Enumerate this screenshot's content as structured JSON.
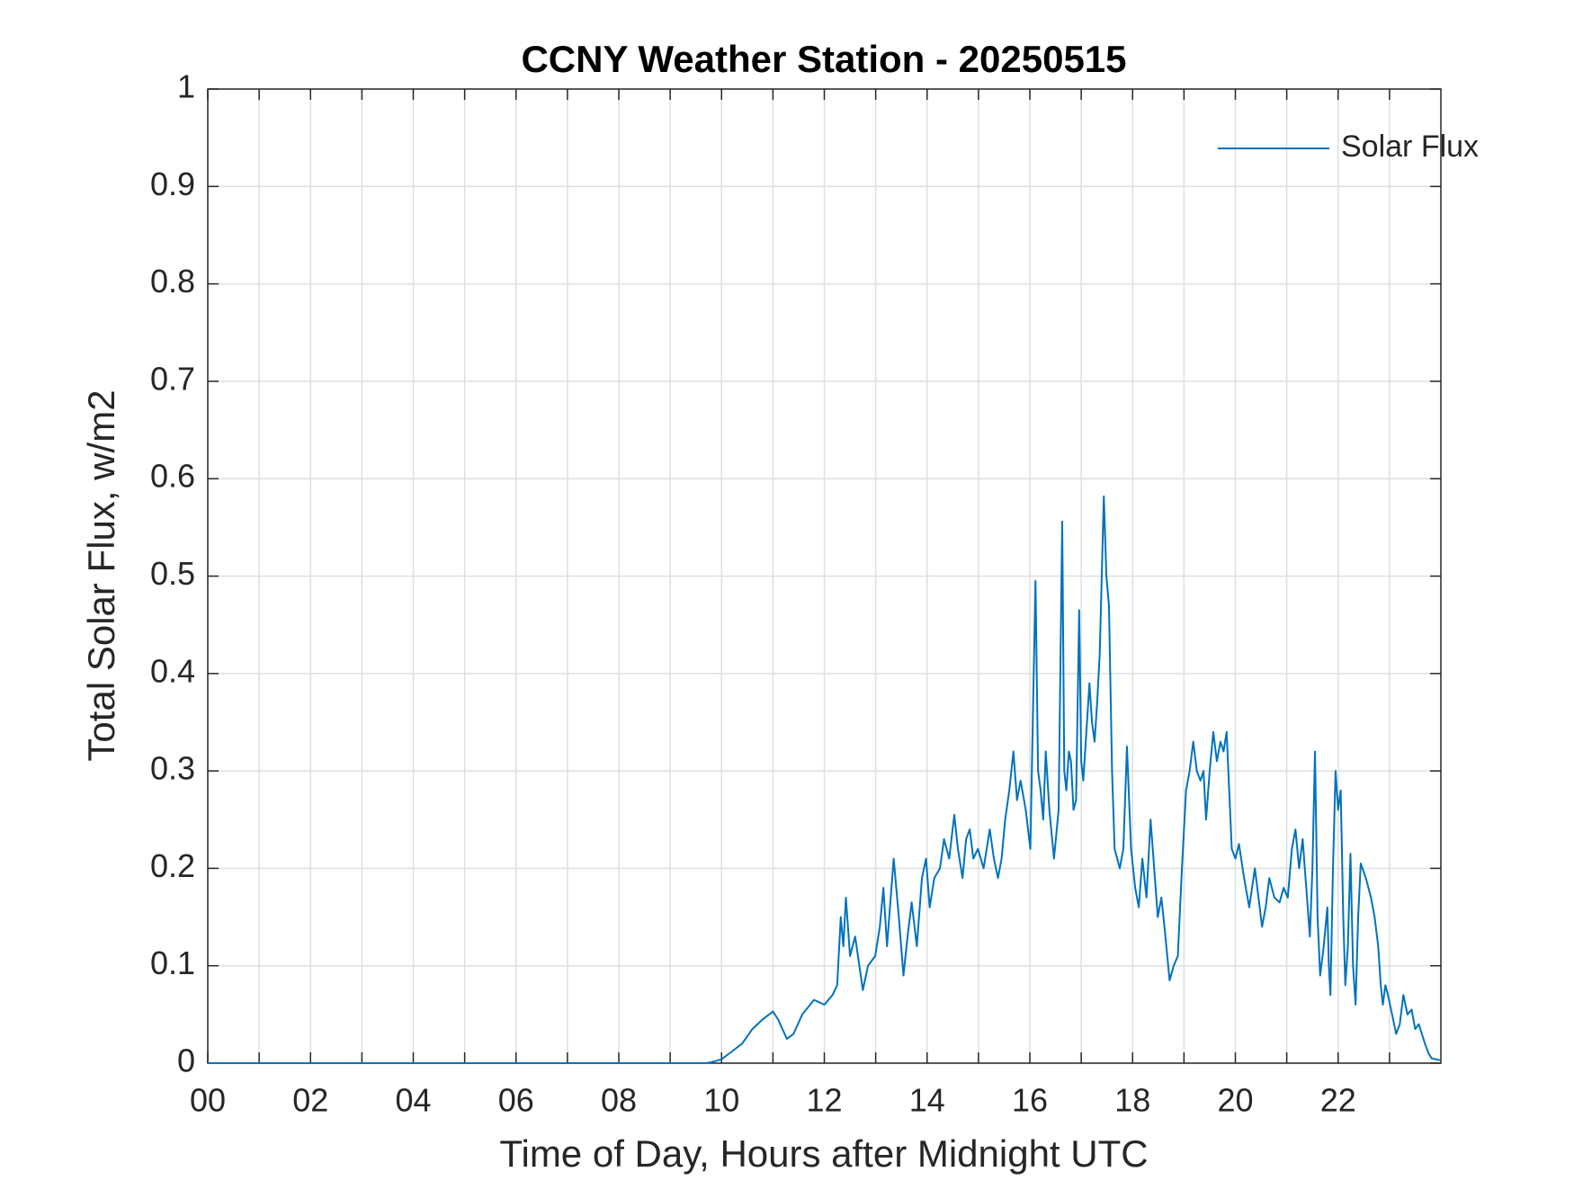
{
  "chart_data": {
    "type": "line",
    "title": "CCNY Weather Station - 20250515",
    "x_label": "Time of Day, Hours after Midnight UTC",
    "y_label": "Total Solar Flux, w/m2",
    "x": [
      0,
      9.7,
      9.8,
      10.0,
      10.2,
      10.4,
      10.6,
      10.8,
      11.0,
      11.1,
      11.27,
      11.4,
      11.57,
      11.8,
      12.0,
      12.16,
      12.25,
      12.32,
      12.37,
      12.42,
      12.5,
      12.6,
      12.75,
      12.85,
      12.99,
      13.08,
      13.15,
      13.22,
      13.35,
      13.45,
      13.54,
      13.62,
      13.7,
      13.8,
      13.9,
      13.98,
      14.05,
      14.14,
      14.25,
      14.33,
      14.43,
      14.53,
      14.6,
      14.69,
      14.76,
      14.83,
      14.9,
      14.99,
      15.1,
      15.22,
      15.3,
      15.38,
      15.45,
      15.52,
      15.6,
      15.68,
      15.75,
      15.82,
      15.92,
      16.01,
      16.11,
      16.16,
      16.21,
      16.26,
      16.31,
      16.38,
      16.47,
      16.56,
      16.63,
      16.67,
      16.71,
      16.76,
      16.8,
      16.85,
      16.9,
      16.96,
      17.0,
      17.04,
      17.1,
      17.16,
      17.21,
      17.26,
      17.31,
      17.36,
      17.44,
      17.49,
      17.54,
      17.6,
      17.65,
      17.75,
      17.82,
      17.89,
      17.97,
      18.05,
      18.12,
      18.19,
      18.27,
      18.35,
      18.42,
      18.49,
      18.56,
      18.62,
      18.72,
      18.8,
      18.88,
      18.96,
      19.04,
      19.11,
      19.18,
      19.25,
      19.32,
      19.38,
      19.43,
      19.5,
      19.57,
      19.64,
      19.71,
      19.77,
      19.83,
      19.93,
      20.0,
      20.07,
      20.17,
      20.27,
      20.38,
      20.45,
      20.52,
      20.59,
      20.66,
      20.76,
      20.86,
      20.94,
      21.02,
      21.1,
      21.17,
      21.24,
      21.31,
      21.38,
      21.45,
      21.5,
      21.55,
      21.6,
      21.65,
      21.72,
      21.79,
      21.82,
      21.85,
      21.9,
      21.95,
      22.0,
      22.05,
      22.1,
      22.14,
      22.19,
      22.24,
      22.29,
      22.34,
      22.39,
      22.44,
      22.54,
      22.64,
      22.71,
      22.78,
      22.83,
      22.87,
      22.92,
      22.97,
      23.05,
      23.13,
      23.2,
      23.27,
      23.35,
      23.43,
      23.5,
      23.57,
      23.63,
      23.69,
      23.76,
      23.82,
      23.9,
      23.98
    ],
    "series": [
      {
        "name": "Solar Flux",
        "color": "#0072bd",
        "values": [
          0,
          0,
          0.001,
          0.004,
          0.012,
          0.02,
          0.035,
          0.045,
          0.053,
          0.045,
          0.025,
          0.03,
          0.05,
          0.065,
          0.06,
          0.07,
          0.08,
          0.15,
          0.12,
          0.17,
          0.11,
          0.13,
          0.075,
          0.1,
          0.11,
          0.14,
          0.18,
          0.12,
          0.21,
          0.15,
          0.09,
          0.13,
          0.165,
          0.12,
          0.19,
          0.21,
          0.16,
          0.19,
          0.2,
          0.23,
          0.21,
          0.255,
          0.22,
          0.19,
          0.23,
          0.24,
          0.21,
          0.22,
          0.2,
          0.24,
          0.21,
          0.19,
          0.21,
          0.25,
          0.28,
          0.32,
          0.27,
          0.29,
          0.26,
          0.22,
          0.495,
          0.3,
          0.28,
          0.25,
          0.32,
          0.26,
          0.21,
          0.26,
          0.556,
          0.3,
          0.28,
          0.32,
          0.31,
          0.26,
          0.27,
          0.465,
          0.31,
          0.29,
          0.34,
          0.39,
          0.35,
          0.33,
          0.37,
          0.42,
          0.582,
          0.5,
          0.47,
          0.3,
          0.22,
          0.2,
          0.22,
          0.325,
          0.22,
          0.18,
          0.16,
          0.21,
          0.17,
          0.25,
          0.2,
          0.15,
          0.17,
          0.14,
          0.085,
          0.1,
          0.11,
          0.2,
          0.28,
          0.3,
          0.33,
          0.3,
          0.29,
          0.3,
          0.25,
          0.3,
          0.34,
          0.31,
          0.33,
          0.32,
          0.34,
          0.22,
          0.21,
          0.225,
          0.19,
          0.16,
          0.2,
          0.17,
          0.14,
          0.16,
          0.19,
          0.17,
          0.165,
          0.18,
          0.17,
          0.22,
          0.24,
          0.2,
          0.23,
          0.18,
          0.13,
          0.2,
          0.32,
          0.15,
          0.09,
          0.12,
          0.16,
          0.1,
          0.07,
          0.2,
          0.3,
          0.26,
          0.28,
          0.15,
          0.08,
          0.12,
          0.215,
          0.1,
          0.06,
          0.15,
          0.205,
          0.19,
          0.17,
          0.15,
          0.12,
          0.08,
          0.06,
          0.08,
          0.07,
          0.05,
          0.03,
          0.04,
          0.07,
          0.05,
          0.055,
          0.035,
          0.04,
          0.03,
          0.02,
          0.01,
          0.005,
          0.004,
          0.003
        ]
      }
    ],
    "xlim": [
      0,
      24
    ],
    "xticks": [
      {
        "value": 0,
        "label": "00"
      },
      {
        "value": 2,
        "label": "02"
      },
      {
        "value": 4,
        "label": "04"
      },
      {
        "value": 6,
        "label": "06"
      },
      {
        "value": 8,
        "label": "08"
      },
      10,
      12,
      14,
      16,
      18,
      20,
      22
    ],
    "xminorticks": [
      1,
      3,
      5,
      7,
      9,
      11,
      13,
      15,
      17,
      19,
      21,
      23
    ],
    "ylim": [
      0,
      1
    ],
    "yticks": [
      0,
      0.1,
      0.2,
      0.3,
      0.4,
      0.5,
      0.6,
      0.7,
      0.8,
      0.9,
      1
    ],
    "grid": true,
    "legend": "upper-right"
  }
}
